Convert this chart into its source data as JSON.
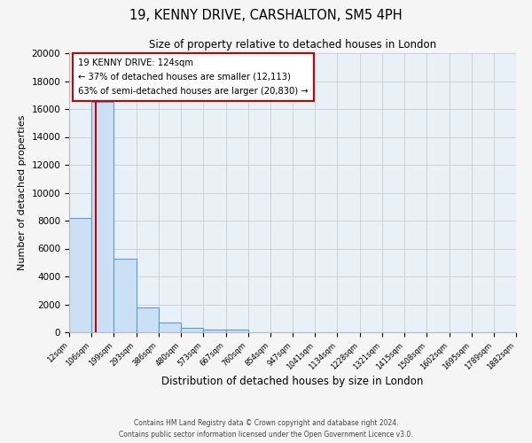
{
  "title_line1": "19, KENNY DRIVE, CARSHALTON, SM5 4PH",
  "title_line2": "Size of property relative to detached houses in London",
  "xlabel": "Distribution of detached houses by size in London",
  "ylabel": "Number of detached properties",
  "bin_edges": [
    12,
    106,
    199,
    293,
    386,
    480,
    573,
    667,
    760,
    854,
    947,
    1041,
    1134,
    1228,
    1321,
    1415,
    1508,
    1602,
    1695,
    1789,
    1882
  ],
  "bin_labels": [
    "12sqm",
    "106sqm",
    "199sqm",
    "293sqm",
    "386sqm",
    "480sqm",
    "573sqm",
    "667sqm",
    "760sqm",
    "854sqm",
    "947sqm",
    "1041sqm",
    "1134sqm",
    "1228sqm",
    "1321sqm",
    "1415sqm",
    "1508sqm",
    "1602sqm",
    "1695sqm",
    "1789sqm",
    "1882sqm"
  ],
  "counts": [
    8200,
    16500,
    5300,
    1800,
    700,
    300,
    200,
    200,
    0,
    0,
    0,
    0,
    0,
    0,
    0,
    0,
    0,
    0,
    0,
    0
  ],
  "bar_color": "#cce0f5",
  "bar_edgecolor": "#5b9bd5",
  "property_size": 124,
  "property_line_color": "#cc0000",
  "annotation_title": "19 KENNY DRIVE: 124sqm",
  "annotation_line1": "← 37% of detached houses are smaller (12,113)",
  "annotation_line2": "63% of semi-detached houses are larger (20,830) →",
  "annotation_box_edgecolor": "#cc0000",
  "annotation_box_facecolor": "#ffffff",
  "ylim": [
    0,
    20000
  ],
  "yticks": [
    0,
    2000,
    4000,
    6000,
    8000,
    10000,
    12000,
    14000,
    16000,
    18000,
    20000
  ],
  "grid_color": "#cccccc",
  "background_color": "#e8f0f8",
  "fig_facecolor": "#f5f5f5",
  "footer_line1": "Contains HM Land Registry data © Crown copyright and database right 2024.",
  "footer_line2": "Contains public sector information licensed under the Open Government Licence v3.0."
}
